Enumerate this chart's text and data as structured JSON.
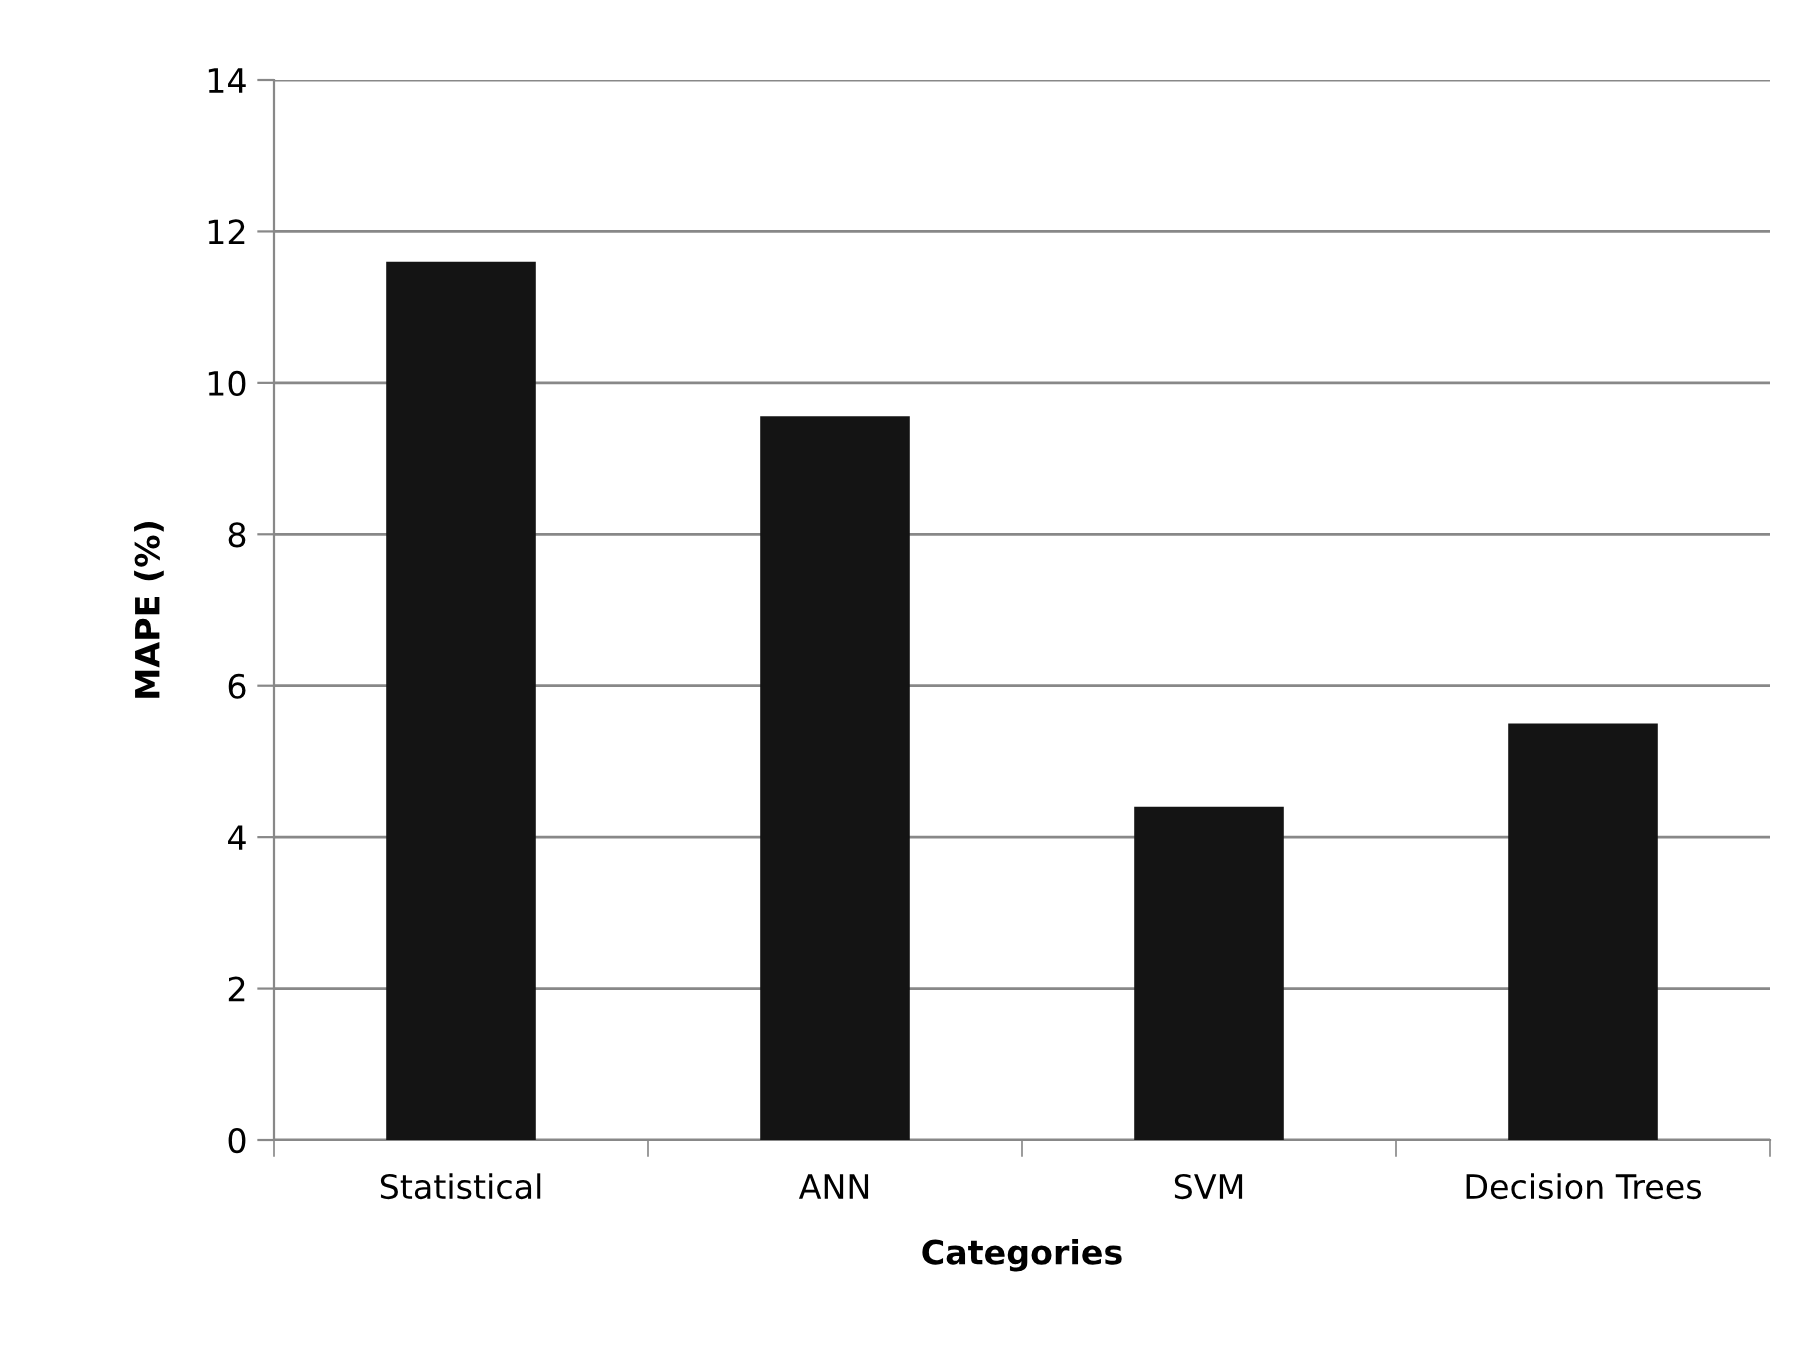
{
  "chart_data": {
    "type": "bar",
    "xlabel": "Categories",
    "ylabel": "MAPE (%)",
    "categories": [
      "Statistical",
      "ANN",
      "SVM",
      "Decision Trees"
    ],
    "values": [
      11.6,
      9.56,
      4.4,
      5.5
    ],
    "color": "#141414",
    "ylim": [
      0,
      14
    ],
    "yticks": [
      0,
      2,
      4,
      6,
      8,
      10,
      12,
      14
    ],
    "grid": "y"
  }
}
